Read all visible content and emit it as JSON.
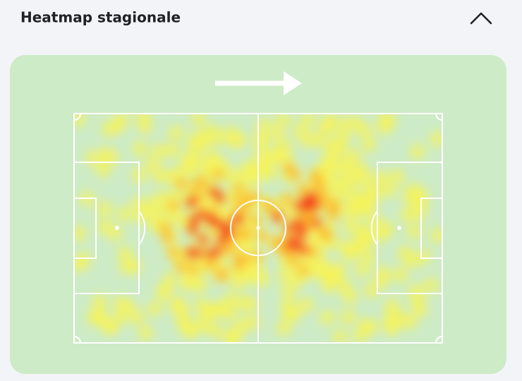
{
  "header": {
    "title": "Heatmap stagionale"
  }
}
